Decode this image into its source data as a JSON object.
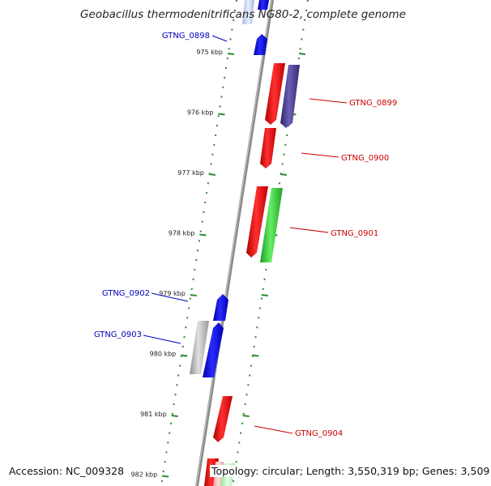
{
  "title": "Geobacillus thermodenitrificans NG80-2, complete genome",
  "footer": {
    "accession": "Accession: NC_009328",
    "summary": "Topology: circular; Length: 3,550,319 bp; Genes: 3,509"
  },
  "colors": {
    "backbone": "#8a8a8a",
    "ticks": "#2e8b2e",
    "forward_label": "#cc0000",
    "reverse_label": "#0000bb",
    "gene_red": "#ee1111",
    "gene_blue": "#1111ee",
    "gene_green": "#33cc33",
    "gene_gray": "#b5b5b5",
    "gene_navy": "#4a3f8f"
  },
  "ticks": [
    {
      "kbp": 975,
      "label": "975 kbp"
    },
    {
      "kbp": 976,
      "label": "976 kbp"
    },
    {
      "kbp": 977,
      "label": "977 kbp"
    },
    {
      "kbp": 978,
      "label": "978 kbp"
    },
    {
      "kbp": 979,
      "label": "979 kbp"
    },
    {
      "kbp": 980,
      "label": "980 kbp"
    },
    {
      "kbp": 981,
      "label": "981 kbp"
    },
    {
      "kbp": 982,
      "label": "982 kbp"
    }
  ],
  "gene_labels": [
    {
      "name": "GTNG_0898",
      "strand": "reverse"
    },
    {
      "name": "GTNG_0899",
      "strand": "forward"
    },
    {
      "name": "GTNG_0900",
      "strand": "forward"
    },
    {
      "name": "GTNG_0901",
      "strand": "forward"
    },
    {
      "name": "GTNG_0902",
      "strand": "reverse"
    },
    {
      "name": "GTNG_0903",
      "strand": "reverse"
    },
    {
      "name": "GTNG_0904",
      "strand": "forward"
    }
  ]
}
